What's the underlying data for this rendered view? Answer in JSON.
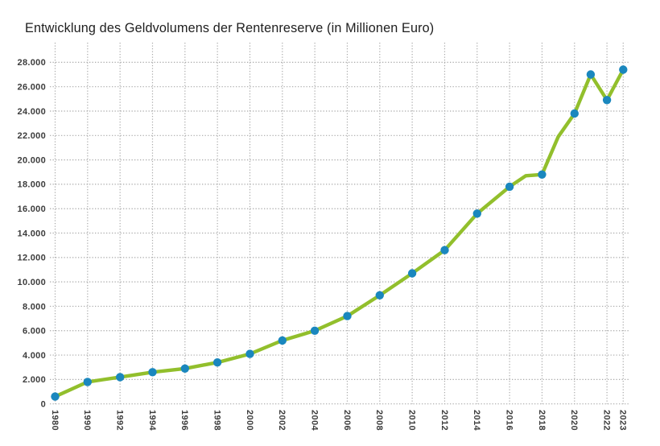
{
  "chart": {
    "title": "Entwicklung des Geldvolumens der Rentenreserve (in Millionen Euro)"
  },
  "chart_data": {
    "type": "line",
    "title": "Entwicklung des Geldvolumens der Rentenreserve (in Millionen Euro)",
    "unit": "Millionen Euro",
    "grid": true,
    "legend": "none",
    "colors": {
      "line": "#92bf2c",
      "marker": "#1a87be",
      "grid": "#a9a9a9",
      "tick_text": "#3c3c3c",
      "title_text": "#1e1e1e"
    },
    "y_axis": {
      "min": 0,
      "max": 28000,
      "step": 2000,
      "tick_labels": [
        "0",
        "2.000",
        "4.000",
        "6.000",
        "8.000",
        "10.000",
        "12.000",
        "14.000",
        "16.000",
        "18.000",
        "20.000",
        "22.000",
        "24.000",
        "26.000",
        "28.000"
      ]
    },
    "x_axis": {
      "ticks": [
        {
          "label": "1980",
          "slot": 0
        },
        {
          "label": "1990",
          "slot": 1
        },
        {
          "label": "1992",
          "slot": 2
        },
        {
          "label": "1994",
          "slot": 3
        },
        {
          "label": "1996",
          "slot": 4
        },
        {
          "label": "1998",
          "slot": 5
        },
        {
          "label": "2000",
          "slot": 6
        },
        {
          "label": "2002",
          "slot": 7
        },
        {
          "label": "2004",
          "slot": 8
        },
        {
          "label": "2006",
          "slot": 9
        },
        {
          "label": "2008",
          "slot": 10
        },
        {
          "label": "2010",
          "slot": 11
        },
        {
          "label": "2012",
          "slot": 12
        },
        {
          "label": "2014",
          "slot": 13
        },
        {
          "label": "2016",
          "slot": 14
        },
        {
          "label": "2018",
          "slot": 15
        },
        {
          "label": "2020",
          "slot": 16
        },
        {
          "label": "2022",
          "slot": 17
        },
        {
          "label": "2023",
          "slot": 17.5
        }
      ]
    },
    "points": [
      {
        "year": "1980",
        "value": 600,
        "slot": 0,
        "marker": true
      },
      {
        "year": "1990",
        "value": 1800,
        "slot": 1,
        "marker": true
      },
      {
        "year": "1992",
        "value": 2200,
        "slot": 2,
        "marker": true
      },
      {
        "year": "1994",
        "value": 2600,
        "slot": 3,
        "marker": true
      },
      {
        "year": "1996",
        "value": 2900,
        "slot": 4,
        "marker": true
      },
      {
        "year": "1998",
        "value": 3400,
        "slot": 5,
        "marker": true
      },
      {
        "year": "2000",
        "value": 4100,
        "slot": 6,
        "marker": true
      },
      {
        "year": "2002",
        "value": 5200,
        "slot": 7,
        "marker": true
      },
      {
        "year": "2004",
        "value": 6000,
        "slot": 8,
        "marker": true
      },
      {
        "year": "2006",
        "value": 7200,
        "slot": 9,
        "marker": true
      },
      {
        "year": "2008",
        "value": 8900,
        "slot": 10,
        "marker": true
      },
      {
        "year": "2010",
        "value": 10700,
        "slot": 11,
        "marker": true
      },
      {
        "year": "2012",
        "value": 12600,
        "slot": 12,
        "marker": true
      },
      {
        "year": "2014",
        "value": 15600,
        "slot": 13,
        "marker": true
      },
      {
        "year": "2016",
        "value": 17800,
        "slot": 14,
        "marker": true
      },
      {
        "year": "2017",
        "value": 18700,
        "slot": 14.5,
        "marker": false
      },
      {
        "year": "2018",
        "value": 18800,
        "slot": 15,
        "marker": true
      },
      {
        "year": "2019",
        "value": 21900,
        "slot": 15.5,
        "marker": false
      },
      {
        "year": "2020",
        "value": 23800,
        "slot": 16,
        "marker": true
      },
      {
        "year": "2021",
        "value": 27000,
        "slot": 16.5,
        "marker": true
      },
      {
        "year": "2022",
        "value": 24900,
        "slot": 17,
        "marker": true
      },
      {
        "year": "2023",
        "value": 27400,
        "slot": 17.5,
        "marker": true
      }
    ]
  }
}
